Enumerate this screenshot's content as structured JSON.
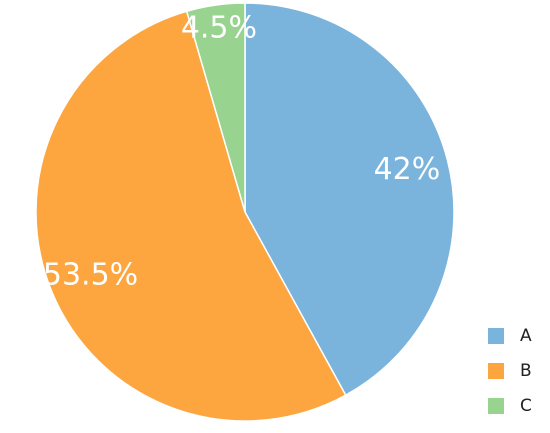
{
  "chart_data": {
    "type": "pie",
    "categories": [
      "A",
      "B",
      "C"
    ],
    "values": [
      42,
      53.5,
      4.5
    ],
    "value_labels": [
      "42%",
      "53.5%",
      "4.5%"
    ],
    "colors": [
      "#7ab3dc",
      "#fda53f",
      "#98d38f"
    ],
    "legend": "bottom-right"
  }
}
